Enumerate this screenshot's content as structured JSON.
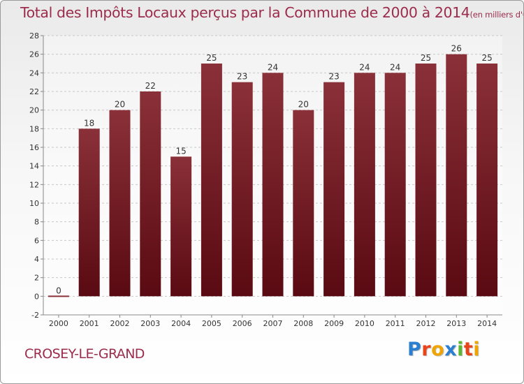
{
  "chart_data": {
    "type": "bar",
    "title": "Total des Impôts Locaux perçus par la Commune de 2000 à 2014",
    "unit": "(en milliers d'€)",
    "categories": [
      "2000",
      "2001",
      "2002",
      "2003",
      "2004",
      "2005",
      "2006",
      "2007",
      "2008",
      "2009",
      "2010",
      "2011",
      "2012",
      "2013",
      "2014"
    ],
    "values": [
      0,
      18,
      20,
      22,
      15,
      25,
      23,
      24,
      20,
      23,
      24,
      24,
      25,
      26,
      25
    ],
    "value_labels": [
      "0",
      "18",
      "20",
      "22",
      "15",
      "25",
      "23",
      "24",
      "20",
      "23",
      "24",
      "24",
      "25",
      "26",
      "25"
    ],
    "yticks": [
      "-2",
      "0",
      "2",
      "4",
      "6",
      "8",
      "10",
      "12",
      "14",
      "16",
      "18",
      "20",
      "22",
      "24",
      "26",
      "28"
    ],
    "ylim": [
      -2,
      28
    ],
    "grid": "horizontal",
    "bar_color": "#5a0a12",
    "bar_color_light": "#8a3038"
  },
  "footer": {
    "commune": "CROSEY-LE-GRAND",
    "logo_letters": [
      "P",
      "r",
      "o",
      "x",
      "i",
      "t",
      "i"
    ],
    "logo_colors": [
      "#2a7fd0",
      "#e8431a",
      "#f0a400",
      "#2a7fd0",
      "#5cb82e",
      "#e8431a",
      "#f0a400"
    ]
  }
}
